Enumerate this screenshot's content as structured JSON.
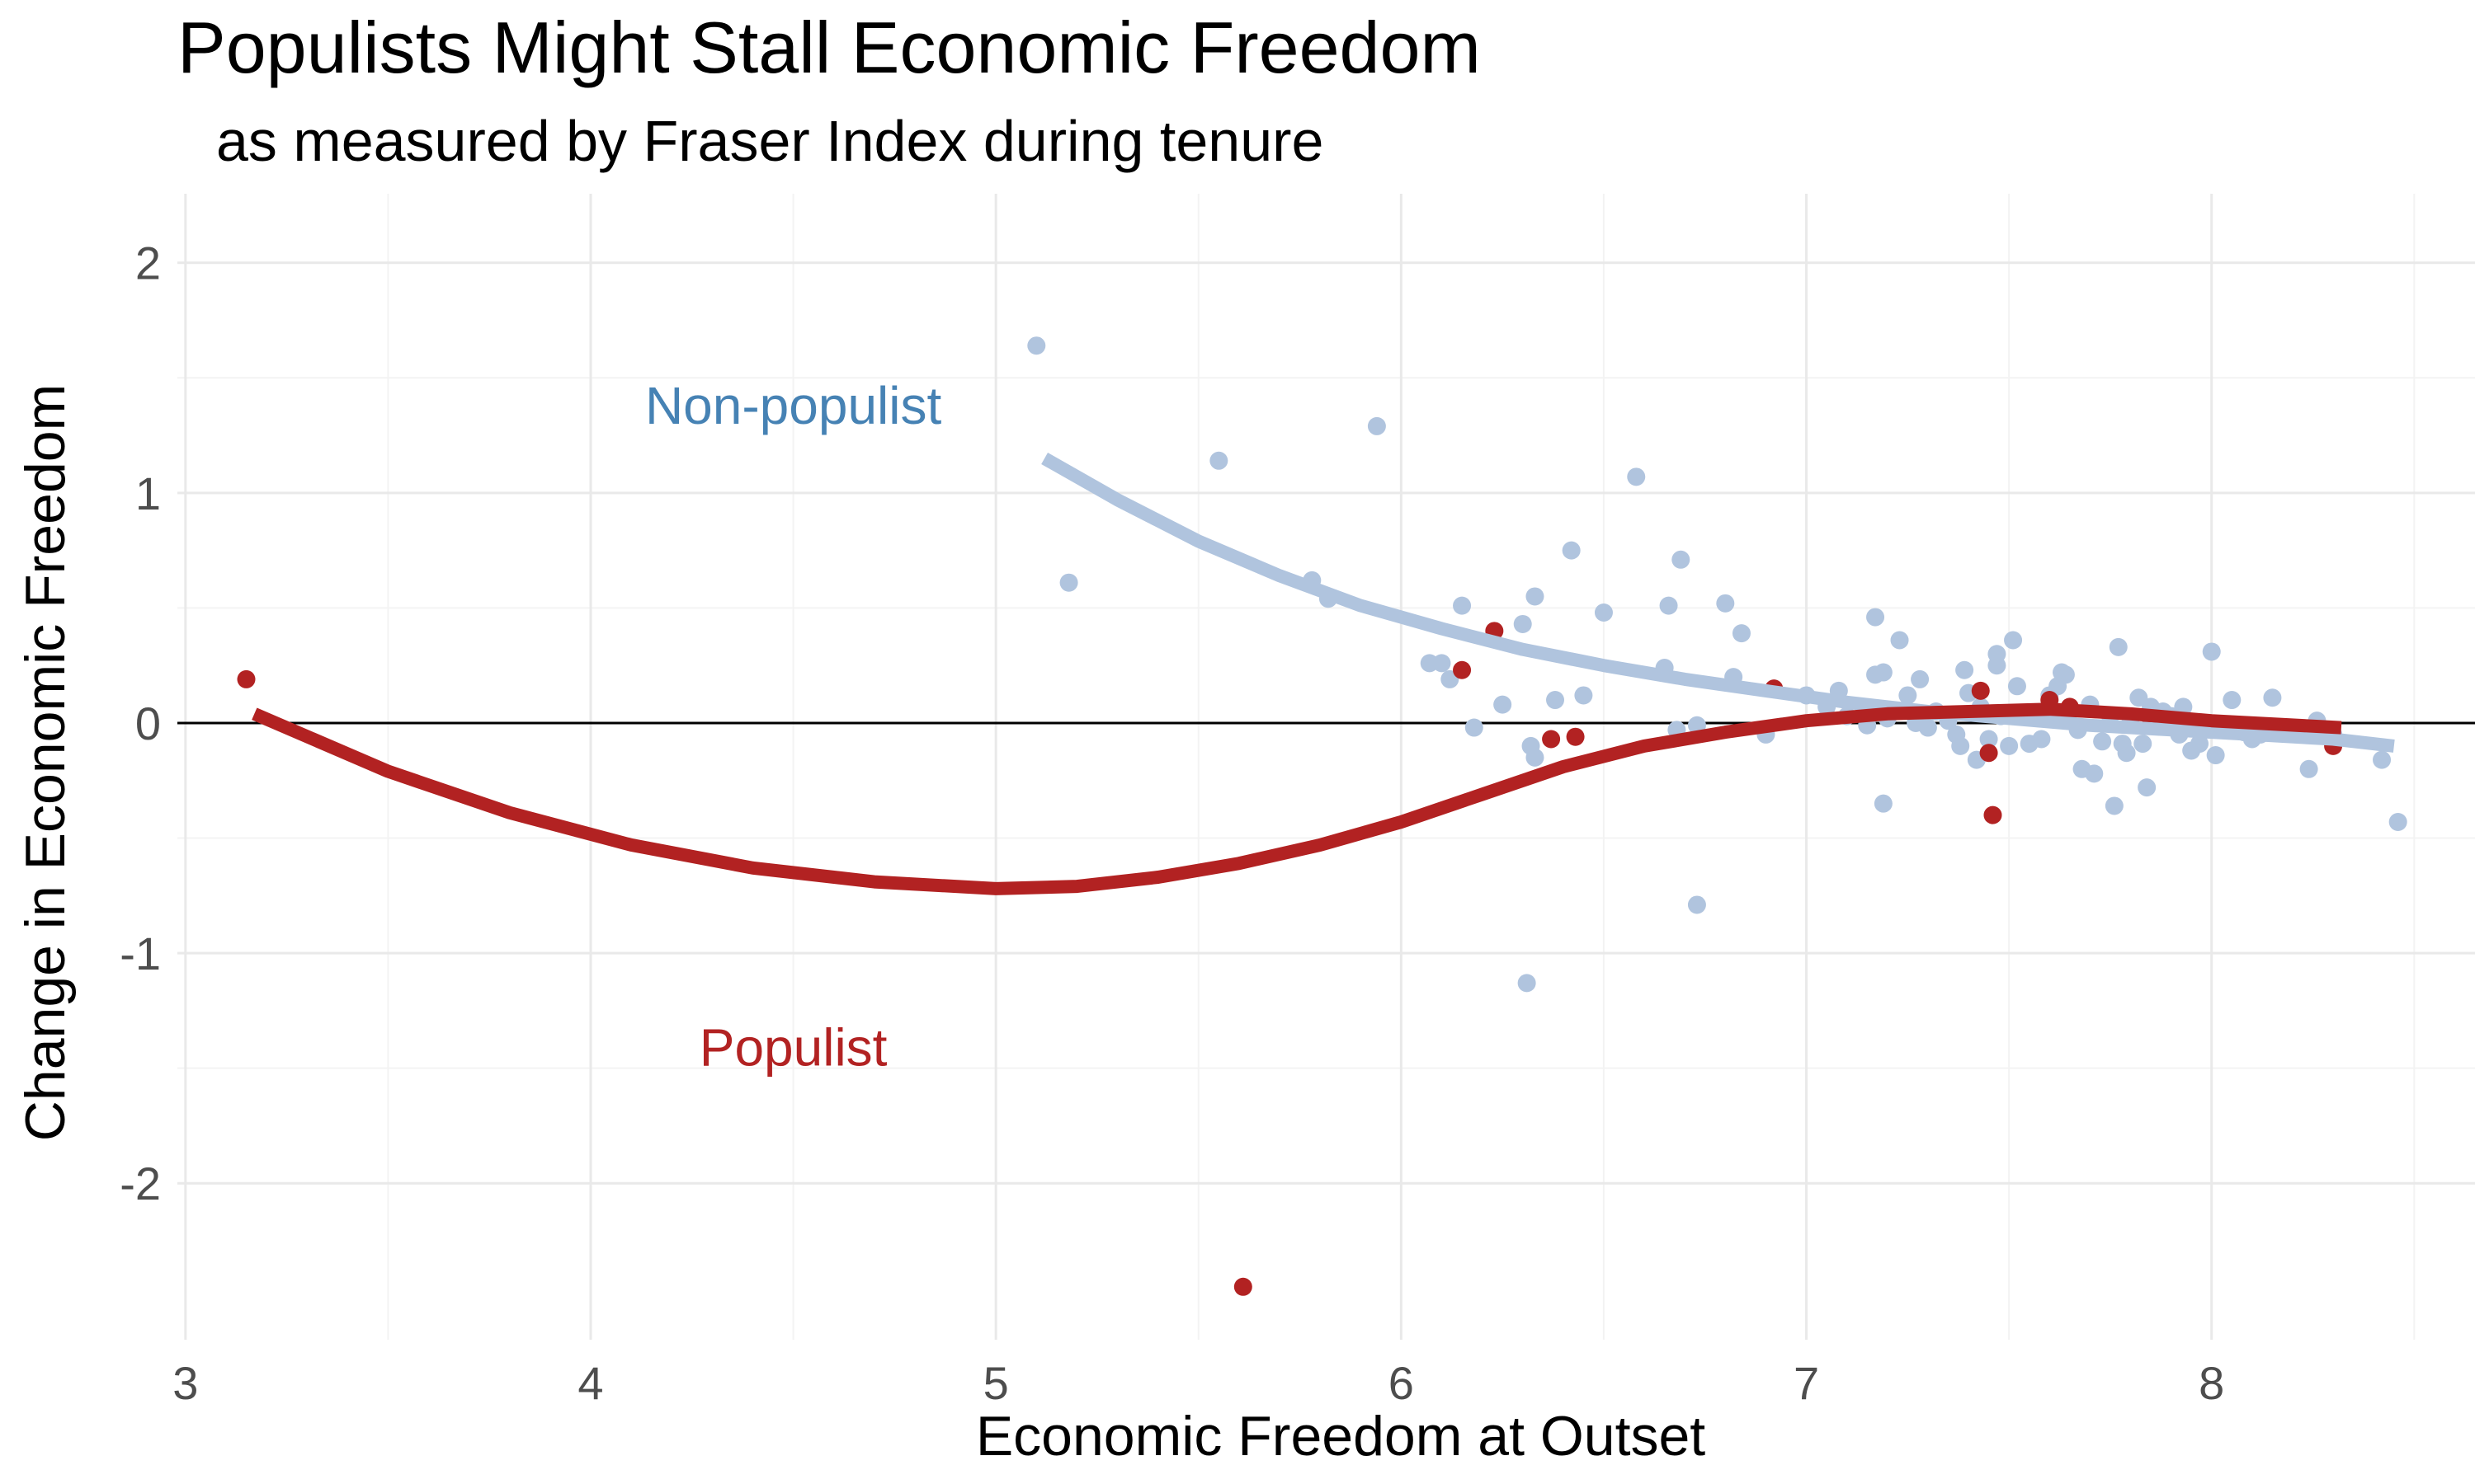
{
  "chart_data": {
    "type": "scatter",
    "title": "Populists Might Stall Economic Freedom",
    "subtitle": "as measured by Fraser Index during tenure",
    "xlabel": "Economic Freedom at Outset",
    "ylabel": "Change in Economic Freedom",
    "xlim": [
      2.98,
      8.65
    ],
    "ylim": [
      -2.68,
      2.3
    ],
    "x_ticks": [
      3,
      4,
      5,
      6,
      7,
      8
    ],
    "y_ticks": [
      -2,
      -1,
      0,
      1,
      2
    ],
    "x_tick_labels": [
      "3",
      "4",
      "5",
      "6",
      "7",
      "8"
    ],
    "y_tick_labels": [
      "-2",
      "-1",
      "0",
      "1",
      "2"
    ],
    "grid": true,
    "reference_line_y": 0,
    "legend": "none",
    "series": [
      {
        "name": "Non-populist",
        "label_position": [
          4.5,
          1.38
        ],
        "color": "#B0C4DE",
        "label_color": "#4682B4",
        "points": [
          [
            5.1,
            1.64
          ],
          [
            5.18,
            0.61
          ],
          [
            5.55,
            1.14
          ],
          [
            5.94,
            1.29
          ],
          [
            5.78,
            0.62
          ],
          [
            5.82,
            0.54
          ],
          [
            6.07,
            0.26
          ],
          [
            6.1,
            0.26
          ],
          [
            6.12,
            0.19
          ],
          [
            6.15,
            0.51
          ],
          [
            6.18,
            -0.02
          ],
          [
            6.25,
            0.08
          ],
          [
            6.3,
            0.43
          ],
          [
            6.33,
            0.55
          ],
          [
            6.32,
            -0.1
          ],
          [
            6.33,
            -0.15
          ],
          [
            6.38,
            0.1
          ],
          [
            6.42,
            0.75
          ],
          [
            6.45,
            0.12
          ],
          [
            6.5,
            0.48
          ],
          [
            6.58,
            1.07
          ],
          [
            6.65,
            0.24
          ],
          [
            6.66,
            0.51
          ],
          [
            6.68,
            -0.03
          ],
          [
            6.69,
            0.71
          ],
          [
            6.73,
            -0.79
          ],
          [
            6.73,
            -0.01
          ],
          [
            6.8,
            0.52
          ],
          [
            6.82,
            0.2
          ],
          [
            6.84,
            0.39
          ],
          [
            6.9,
            -0.05
          ],
          [
            6.31,
            -1.13
          ],
          [
            7.0,
            0.12
          ],
          [
            7.05,
            0.07
          ],
          [
            7.08,
            0.14
          ],
          [
            7.1,
            0.03
          ],
          [
            7.15,
            -0.01
          ],
          [
            7.17,
            0.21
          ],
          [
            7.17,
            0.46
          ],
          [
            7.19,
            0.22
          ],
          [
            7.19,
            -0.35
          ],
          [
            7.2,
            0.02
          ],
          [
            7.23,
            0.36
          ],
          [
            7.25,
            0.12
          ],
          [
            7.27,
            0.0
          ],
          [
            7.28,
            0.19
          ],
          [
            7.3,
            -0.02
          ],
          [
            7.32,
            0.05
          ],
          [
            7.35,
            0.01
          ],
          [
            7.37,
            -0.05
          ],
          [
            7.38,
            -0.1
          ],
          [
            7.39,
            0.23
          ],
          [
            7.4,
            0.13
          ],
          [
            7.42,
            -0.16
          ],
          [
            7.43,
            0.07
          ],
          [
            7.45,
            -0.07
          ],
          [
            7.47,
            0.25
          ],
          [
            7.47,
            0.3
          ],
          [
            7.48,
            0.03
          ],
          [
            7.5,
            -0.1
          ],
          [
            7.51,
            0.36
          ],
          [
            7.52,
            0.16
          ],
          [
            7.53,
            0.04
          ],
          [
            7.55,
            -0.09
          ],
          [
            7.57,
            0.03
          ],
          [
            7.58,
            -0.07
          ],
          [
            7.6,
            0.12
          ],
          [
            7.62,
            0.16
          ],
          [
            7.63,
            0.22
          ],
          [
            7.64,
            0.21
          ],
          [
            7.65,
            0.05
          ],
          [
            7.67,
            -0.03
          ],
          [
            7.68,
            -0.2
          ],
          [
            7.7,
            0.08
          ],
          [
            7.71,
            -0.22
          ],
          [
            7.73,
            -0.08
          ],
          [
            7.75,
            0.03
          ],
          [
            7.76,
            -0.36
          ],
          [
            7.77,
            0.33
          ],
          [
            7.78,
            -0.09
          ],
          [
            7.79,
            -0.13
          ],
          [
            7.8,
            0.02
          ],
          [
            7.82,
            0.11
          ],
          [
            7.83,
            -0.09
          ],
          [
            7.84,
            -0.28
          ],
          [
            7.85,
            0.07
          ],
          [
            7.87,
            -0.01
          ],
          [
            7.88,
            0.05
          ],
          [
            7.9,
            0.03
          ],
          [
            7.92,
            -0.05
          ],
          [
            7.93,
            0.07
          ],
          [
            7.95,
            -0.12
          ],
          [
            7.97,
            -0.09
          ],
          [
            8.0,
            0.31
          ],
          [
            8.01,
            -0.14
          ],
          [
            8.05,
            0.1
          ],
          [
            8.08,
            -0.04
          ],
          [
            8.1,
            -0.07
          ],
          [
            8.12,
            -0.05
          ],
          [
            8.15,
            0.11
          ],
          [
            8.2,
            -0.03
          ],
          [
            8.24,
            -0.2
          ],
          [
            8.26,
            0.01
          ],
          [
            8.3,
            -0.05
          ],
          [
            8.42,
            -0.16
          ],
          [
            8.46,
            -0.43
          ]
        ],
        "trend": [
          [
            5.12,
            1.15
          ],
          [
            5.3,
            0.97
          ],
          [
            5.5,
            0.79
          ],
          [
            5.7,
            0.64
          ],
          [
            5.9,
            0.51
          ],
          [
            6.1,
            0.41
          ],
          [
            6.3,
            0.32
          ],
          [
            6.5,
            0.25
          ],
          [
            6.7,
            0.19
          ],
          [
            6.9,
            0.14
          ],
          [
            7.1,
            0.09
          ],
          [
            7.3,
            0.05
          ],
          [
            7.5,
            0.02
          ],
          [
            7.7,
            -0.01
          ],
          [
            7.9,
            -0.03
          ],
          [
            8.1,
            -0.05
          ],
          [
            8.3,
            -0.07
          ],
          [
            8.45,
            -0.1
          ]
        ]
      },
      {
        "name": "Populist",
        "label_position": [
          4.5,
          -1.41
        ],
        "color": "#B22222",
        "label_color": "#B22222",
        "points": [
          [
            3.15,
            0.19
          ],
          [
            5.61,
            -2.45
          ],
          [
            6.15,
            0.23
          ],
          [
            6.23,
            0.4
          ],
          [
            6.37,
            -0.07
          ],
          [
            6.43,
            -0.06
          ],
          [
            6.92,
            0.15
          ],
          [
            7.43,
            0.14
          ],
          [
            7.45,
            -0.13
          ],
          [
            7.46,
            -0.4
          ],
          [
            7.6,
            0.1
          ],
          [
            7.65,
            0.07
          ],
          [
            7.85,
            0.02
          ],
          [
            8.3,
            -0.1
          ]
        ],
        "trend": [
          [
            3.17,
            0.04
          ],
          [
            3.5,
            -0.21
          ],
          [
            3.8,
            -0.39
          ],
          [
            4.1,
            -0.53
          ],
          [
            4.4,
            -0.63
          ],
          [
            4.7,
            -0.69
          ],
          [
            5.0,
            -0.72
          ],
          [
            5.2,
            -0.71
          ],
          [
            5.4,
            -0.67
          ],
          [
            5.6,
            -0.61
          ],
          [
            5.8,
            -0.53
          ],
          [
            6.0,
            -0.43
          ],
          [
            6.2,
            -0.31
          ],
          [
            6.4,
            -0.19
          ],
          [
            6.6,
            -0.1
          ],
          [
            6.8,
            -0.04
          ],
          [
            7.0,
            0.01
          ],
          [
            7.2,
            0.04
          ],
          [
            7.4,
            0.05
          ],
          [
            7.6,
            0.06
          ],
          [
            7.8,
            0.04
          ],
          [
            8.0,
            0.01
          ],
          [
            8.32,
            -0.02
          ]
        ]
      }
    ]
  }
}
